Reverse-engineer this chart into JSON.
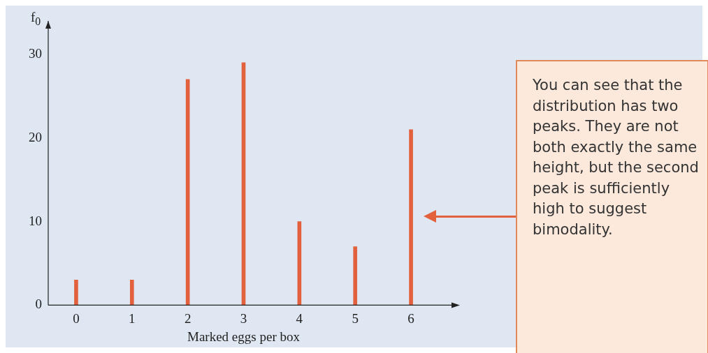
{
  "chart_data": {
    "type": "bar",
    "categories": [
      "0",
      "1",
      "2",
      "3",
      "4",
      "5",
      "6"
    ],
    "values": [
      3,
      3,
      27,
      29,
      10,
      7,
      21
    ],
    "color": "#e2603c",
    "ylim": [
      0,
      34
    ],
    "yticks": [
      0,
      10,
      20,
      30
    ],
    "xlabel": "Marked eggs per box",
    "ylabel": "f$_{0}$",
    "grid": false,
    "legend": false,
    "annotations": [
      "You can see that the distribution has two peaks. They are not both exactly the same height, but the second peak is sufficiently high to suggest bimodality."
    ]
  }
}
